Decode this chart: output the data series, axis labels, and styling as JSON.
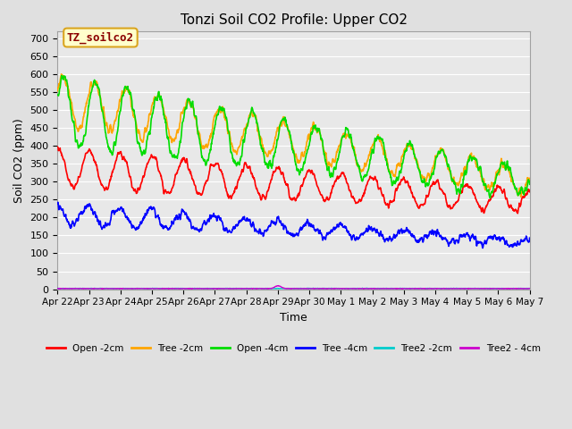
{
  "title": "Tonzi Soil CO2 Profile: Upper CO2",
  "xlabel": "Time",
  "ylabel": "Soil CO2 (ppm)",
  "ylim": [
    0,
    720
  ],
  "yticks": [
    0,
    50,
    100,
    150,
    200,
    250,
    300,
    350,
    400,
    450,
    500,
    550,
    600,
    650,
    700
  ],
  "annotation_text": "TZ_soilco2",
  "annotation_color": "#8B0000",
  "annotation_bg": "#FFFFCC",
  "annotation_border": "#DAA520",
  "plot_bg_color": "#E8E8E8",
  "fig_bg_color": "#E0E0E0",
  "grid_color": "#FFFFFF",
  "lines": {
    "open_2cm": {
      "color": "#FF0000",
      "lw": 1.2,
      "label": "Open -2cm"
    },
    "tree_2cm": {
      "color": "#FFA500",
      "lw": 1.2,
      "label": "Tree -2cm"
    },
    "open_4cm": {
      "color": "#00DD00",
      "lw": 1.2,
      "label": "Open -4cm"
    },
    "tree_4cm": {
      "color": "#0000FF",
      "lw": 1.2,
      "label": "Tree -4cm"
    },
    "tree2_2cm": {
      "color": "#00CCCC",
      "lw": 1.0,
      "label": "Tree2 -2cm"
    },
    "tree2_4cm": {
      "color": "#CC00CC",
      "lw": 1.0,
      "label": "Tree2 - 4cm"
    }
  },
  "date_labels": [
    "Apr 22",
    "Apr 23",
    "Apr 24",
    "Apr 25",
    "Apr 26",
    "Apr 27",
    "Apr 28",
    "Apr 29",
    "Apr 30",
    "May 1",
    "May 2",
    "May 3",
    "May 4",
    "May 5",
    "May 6",
    "May 7"
  ],
  "n_points": 1500
}
